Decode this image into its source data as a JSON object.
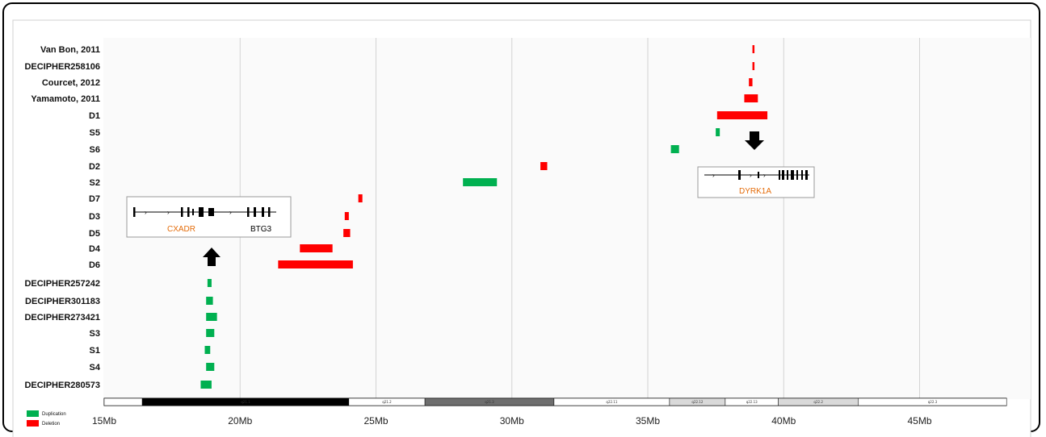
{
  "chart_data": {
    "type": "bar",
    "orientation": "horizontal-ranges",
    "x_unit": "Mb",
    "xlim": [
      15,
      48
    ],
    "x_ticks": [
      15,
      20,
      25,
      30,
      35,
      40,
      45
    ],
    "x_tick_labels": [
      "15Mb",
      "20Mb",
      "25Mb",
      "30Mb",
      "35Mb",
      "40Mb",
      "45Mb"
    ],
    "grid": "vertical",
    "colors": {
      "Duplication": "#00b050",
      "Deletion": "#ff0000"
    },
    "legend": {
      "placement": "bottom-left",
      "entries": [
        {
          "label": "Duplication",
          "color": "#00b050"
        },
        {
          "label": "Deletion",
          "color": "#ff0000"
        }
      ]
    },
    "rows": [
      {
        "label": "Van Bon, 2011",
        "type": "Deletion",
        "start": 38.85,
        "end": 38.9
      },
      {
        "label": "DECIPHER258106",
        "type": "Deletion",
        "start": 38.85,
        "end": 38.9
      },
      {
        "label": "Courcet, 2012",
        "type": "Deletion",
        "start": 38.72,
        "end": 38.85
      },
      {
        "label": "Yamamoto, 2011",
        "type": "Deletion",
        "start": 38.55,
        "end": 39.05
      },
      {
        "label": "D1",
        "type": "Deletion",
        "start": 37.55,
        "end": 39.4
      },
      {
        "label": "S5",
        "type": "Duplication",
        "start": 37.5,
        "end": 37.65
      },
      {
        "label": "S6",
        "type": "Duplication",
        "start": 35.85,
        "end": 36.15
      },
      {
        "label": "D2",
        "type": "Deletion",
        "start": 31.05,
        "end": 31.3
      },
      {
        "label": "S2",
        "type": "Duplication",
        "start": 28.2,
        "end": 29.45
      },
      {
        "label": "D7",
        "type": "Deletion",
        "start": 24.35,
        "end": 24.5
      },
      {
        "label": "D3",
        "type": "Deletion",
        "start": 23.85,
        "end": 24.0
      },
      {
        "label": "D5",
        "type": "Deletion",
        "start": 23.8,
        "end": 24.05
      },
      {
        "label": "D4",
        "type": "Deletion",
        "start": 22.2,
        "end": 23.4
      },
      {
        "label": "D6",
        "type": "Deletion",
        "start": 21.4,
        "end": 24.15
      },
      {
        "label": "DECIPHER257242",
        "type": "Duplication",
        "start": 18.8,
        "end": 18.95
      },
      {
        "label": "DECIPHER301183",
        "type": "Duplication",
        "start": 18.75,
        "end": 19.0
      },
      {
        "label": "DECIPHER273421",
        "type": "Duplication",
        "start": 18.75,
        "end": 19.15
      },
      {
        "label": "S3",
        "type": "Duplication",
        "start": 18.75,
        "end": 19.05
      },
      {
        "label": "S1",
        "type": "Duplication",
        "start": 18.7,
        "end": 18.9
      },
      {
        "label": "S4",
        "type": "Duplication",
        "start": 18.75,
        "end": 19.05
      },
      {
        "label": "DECIPHER280573",
        "type": "Duplication",
        "start": 18.55,
        "end": 18.95
      }
    ],
    "ideogram": [
      {
        "label": "",
        "start": 15.0,
        "end": 16.4,
        "color": "#ffffff"
      },
      {
        "label": "q21.1",
        "start": 16.4,
        "end": 24.0,
        "color": "#000000"
      },
      {
        "label": "q21.2",
        "start": 24.0,
        "end": 26.8,
        "color": "#ffffff"
      },
      {
        "label": "q21.3",
        "start": 26.8,
        "end": 31.55,
        "color": "#6e6e6e"
      },
      {
        "label": "q22.11",
        "start": 31.55,
        "end": 35.8,
        "color": "#ffffff"
      },
      {
        "label": "q22.12",
        "start": 35.8,
        "end": 37.85,
        "color": "#d9d9d9"
      },
      {
        "label": "q22.13",
        "start": 37.85,
        "end": 39.8,
        "color": "#ffffff"
      },
      {
        "label": "q22.2",
        "start": 39.8,
        "end": 42.75,
        "color": "#d9d9d9"
      },
      {
        "label": "q22.3",
        "start": 42.75,
        "end": 48.2,
        "color": "#ffffff"
      }
    ],
    "annotations": [
      {
        "gene": "CXADR",
        "color": "#e46c0a"
      },
      {
        "gene": "BTG3",
        "color": "#000000"
      },
      {
        "gene": "DYRK1A",
        "color": "#e46c0a"
      }
    ]
  }
}
